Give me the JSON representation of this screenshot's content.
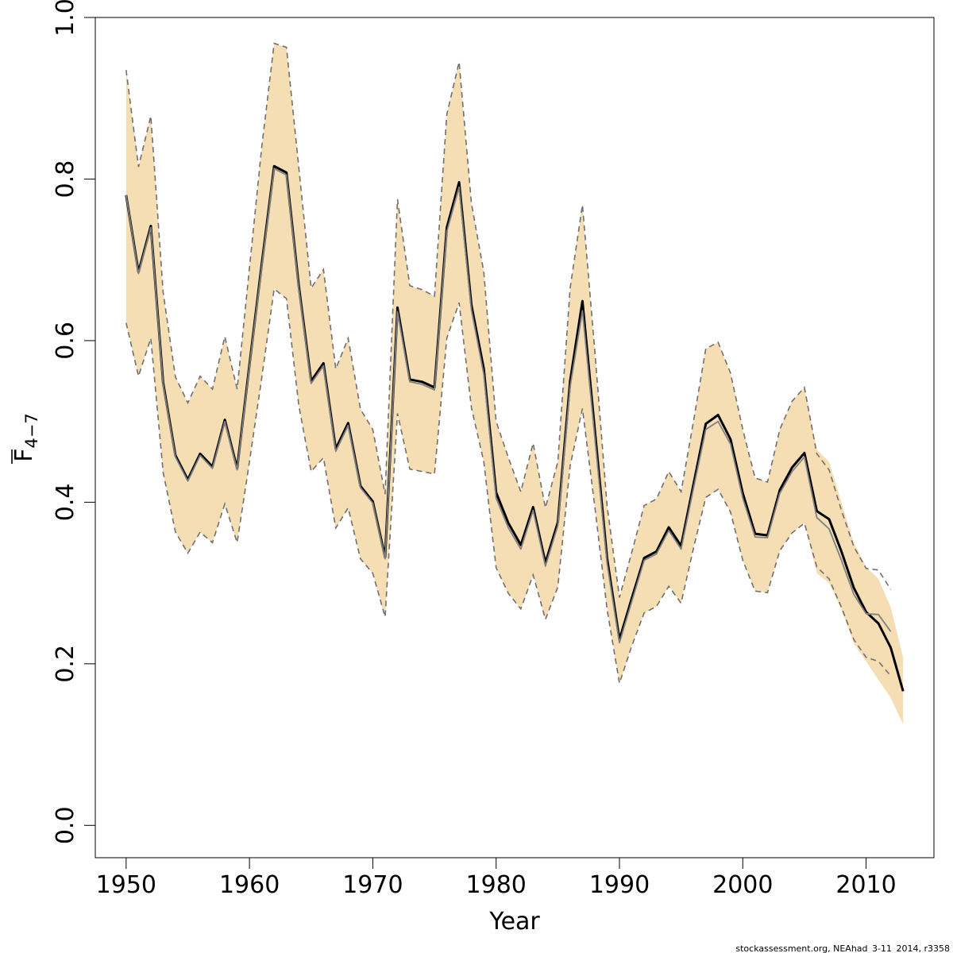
{
  "chart_data": {
    "type": "line",
    "title": "",
    "xlabel": "Year",
    "ylabel_main": "F",
    "ylabel_sub": "4−7",
    "xlim": [
      1947.5,
      2015.5
    ],
    "ylim": [
      -0.04,
      1.0
    ],
    "x_ticks": [
      "1950",
      "1960",
      "1970",
      "1980",
      "1990",
      "2000",
      "2010"
    ],
    "y_ticks": [
      "0.0",
      "0.2",
      "0.4",
      "0.6",
      "0.8",
      "1.0"
    ],
    "grid": false,
    "legend": "none",
    "colors": {
      "band": "#f5deb3",
      "estimate": "#000000",
      "previous": "#808080",
      "bound": "#707070"
    },
    "series": [
      {
        "role": "estimate",
        "x": [
          1950,
          1951,
          1952,
          1953,
          1954,
          1955,
          1956,
          1957,
          1958,
          1959,
          1960,
          1961,
          1962,
          1963,
          1964,
          1965,
          1966,
          1967,
          1968,
          1969,
          1970,
          1971,
          1972,
          1973,
          1974,
          1975,
          1976,
          1977,
          1978,
          1979,
          1980,
          1981,
          1982,
          1983,
          1984,
          1985,
          1986,
          1987,
          1988,
          1989,
          1990,
          1991,
          1992,
          1993,
          1994,
          1995,
          1996,
          1997,
          1998,
          1999,
          2000,
          2001,
          2002,
          2003,
          2004,
          2005,
          2006,
          2007,
          2008,
          2009,
          2010,
          2011,
          2012,
          2013
        ],
        "y": [
          0.78,
          0.685,
          0.742,
          0.548,
          0.458,
          0.428,
          0.46,
          0.444,
          0.502,
          0.442,
          0.57,
          0.695,
          0.816,
          0.808,
          0.668,
          0.55,
          0.572,
          0.466,
          0.498,
          0.42,
          0.401,
          0.332,
          0.641,
          0.552,
          0.549,
          0.542,
          0.74,
          0.796,
          0.644,
          0.565,
          0.412,
          0.374,
          0.347,
          0.394,
          0.325,
          0.375,
          0.55,
          0.649,
          0.49,
          0.33,
          0.23,
          0.281,
          0.331,
          0.339,
          0.369,
          0.346,
          0.422,
          0.497,
          0.508,
          0.478,
          0.411,
          0.361,
          0.359,
          0.415,
          0.443,
          0.461,
          0.389,
          0.379,
          0.339,
          0.294,
          0.264,
          0.25,
          0.22,
          0.166
        ]
      },
      {
        "role": "previous",
        "x": [
          1950,
          1951,
          1952,
          1953,
          1954,
          1955,
          1956,
          1957,
          1958,
          1959,
          1960,
          1961,
          1962,
          1963,
          1964,
          1965,
          1966,
          1967,
          1968,
          1969,
          1970,
          1971,
          1972,
          1973,
          1974,
          1975,
          1976,
          1977,
          1978,
          1979,
          1980,
          1981,
          1982,
          1983,
          1984,
          1985,
          1986,
          1987,
          1988,
          1989,
          1990,
          1991,
          1992,
          1993,
          1994,
          1995,
          1996,
          1997,
          1998,
          1999,
          2000,
          2001,
          2002,
          2003,
          2004,
          2005,
          2006,
          2007,
          2008,
          2009,
          2010,
          2011,
          2012
        ],
        "y": [
          0.78,
          0.683,
          0.74,
          0.546,
          0.456,
          0.426,
          0.458,
          0.442,
          0.5,
          0.44,
          0.568,
          0.692,
          0.813,
          0.805,
          0.665,
          0.547,
          0.569,
          0.463,
          0.495,
          0.418,
          0.399,
          0.33,
          0.636,
          0.549,
          0.546,
          0.539,
          0.735,
          0.79,
          0.638,
          0.558,
          0.405,
          0.368,
          0.342,
          0.39,
          0.321,
          0.371,
          0.543,
          0.637,
          0.481,
          0.324,
          0.226,
          0.277,
          0.328,
          0.336,
          0.365,
          0.342,
          0.417,
          0.49,
          0.5,
          0.472,
          0.405,
          0.357,
          0.356,
          0.411,
          0.438,
          0.456,
          0.381,
          0.367,
          0.328,
          0.286,
          0.262,
          0.261,
          0.24
        ]
      }
    ],
    "band": {
      "x": [
        1950,
        1951,
        1952,
        1953,
        1954,
        1955,
        1956,
        1957,
        1958,
        1959,
        1960,
        1961,
        1962,
        1963,
        1964,
        1965,
        1966,
        1967,
        1968,
        1969,
        1970,
        1971,
        1972,
        1973,
        1974,
        1975,
        1976,
        1977,
        1978,
        1979,
        1980,
        1981,
        1982,
        1983,
        1984,
        1985,
        1986,
        1987,
        1988,
        1989,
        1990,
        1991,
        1992,
        1993,
        1994,
        1995,
        1996,
        1997,
        1998,
        1999,
        2000,
        2001,
        2002,
        2003,
        2004,
        2005,
        2006,
        2007,
        2008,
        2009,
        2010,
        2011,
        2012,
        2013
      ],
      "upper": [
        0.935,
        0.815,
        0.878,
        0.66,
        0.555,
        0.523,
        0.556,
        0.54,
        0.605,
        0.54,
        0.69,
        0.84,
        0.968,
        0.963,
        0.815,
        0.665,
        0.688,
        0.565,
        0.603,
        0.515,
        0.49,
        0.41,
        0.775,
        0.668,
        0.663,
        0.655,
        0.88,
        0.945,
        0.77,
        0.685,
        0.5,
        0.455,
        0.413,
        0.473,
        0.393,
        0.45,
        0.665,
        0.768,
        0.588,
        0.395,
        0.282,
        0.338,
        0.396,
        0.404,
        0.438,
        0.413,
        0.5,
        0.59,
        0.598,
        0.56,
        0.49,
        0.43,
        0.425,
        0.49,
        0.525,
        0.542,
        0.465,
        0.45,
        0.4,
        0.35,
        0.32,
        0.305,
        0.27,
        0.208
      ],
      "lower": [
        0.622,
        0.556,
        0.603,
        0.437,
        0.363,
        0.337,
        0.363,
        0.35,
        0.398,
        0.35,
        0.45,
        0.554,
        0.664,
        0.652,
        0.52,
        0.438,
        0.455,
        0.368,
        0.393,
        0.33,
        0.312,
        0.258,
        0.51,
        0.441,
        0.438,
        0.435,
        0.603,
        0.647,
        0.517,
        0.45,
        0.319,
        0.287,
        0.268,
        0.31,
        0.255,
        0.295,
        0.445,
        0.516,
        0.395,
        0.267,
        0.176,
        0.222,
        0.263,
        0.271,
        0.296,
        0.275,
        0.343,
        0.406,
        0.416,
        0.388,
        0.328,
        0.29,
        0.288,
        0.34,
        0.362,
        0.374,
        0.312,
        0.3,
        0.267,
        0.225,
        0.203,
        0.18,
        0.158,
        0.125
      ]
    },
    "previous_bounds": {
      "x": [
        1950,
        1951,
        1952,
        1953,
        1954,
        1955,
        1956,
        1957,
        1958,
        1959,
        1960,
        1961,
        1962,
        1963,
        1964,
        1965,
        1966,
        1967,
        1968,
        1969,
        1970,
        1971,
        1972,
        1973,
        1974,
        1975,
        1976,
        1977,
        1978,
        1979,
        1980,
        1981,
        1982,
        1983,
        1984,
        1985,
        1986,
        1987,
        1988,
        1989,
        1990,
        1991,
        1992,
        1993,
        1994,
        1995,
        1996,
        1997,
        1998,
        1999,
        2000,
        2001,
        2002,
        2003,
        2004,
        2005,
        2006,
        2007,
        2008,
        2009,
        2010,
        2011,
        2012
      ],
      "upper": [
        0.935,
        0.815,
        0.878,
        0.66,
        0.555,
        0.523,
        0.556,
        0.54,
        0.605,
        0.54,
        0.69,
        0.84,
        0.968,
        0.963,
        0.815,
        0.665,
        0.688,
        0.565,
        0.603,
        0.515,
        0.49,
        0.41,
        0.775,
        0.668,
        0.663,
        0.655,
        0.88,
        0.945,
        0.77,
        0.685,
        0.5,
        0.455,
        0.413,
        0.473,
        0.393,
        0.45,
        0.665,
        0.768,
        0.588,
        0.395,
        0.282,
        0.338,
        0.396,
        0.404,
        0.438,
        0.413,
        0.5,
        0.59,
        0.598,
        0.56,
        0.49,
        0.43,
        0.425,
        0.49,
        0.525,
        0.542,
        0.46,
        0.44,
        0.39,
        0.345,
        0.318,
        0.316,
        0.292
      ],
      "lower": [
        0.622,
        0.556,
        0.603,
        0.437,
        0.363,
        0.337,
        0.363,
        0.35,
        0.398,
        0.35,
        0.45,
        0.554,
        0.664,
        0.652,
        0.52,
        0.438,
        0.455,
        0.368,
        0.393,
        0.33,
        0.312,
        0.258,
        0.51,
        0.441,
        0.438,
        0.435,
        0.603,
        0.647,
        0.517,
        0.45,
        0.319,
        0.287,
        0.268,
        0.31,
        0.255,
        0.295,
        0.445,
        0.516,
        0.395,
        0.267,
        0.176,
        0.222,
        0.263,
        0.271,
        0.296,
        0.275,
        0.343,
        0.406,
        0.416,
        0.388,
        0.328,
        0.29,
        0.288,
        0.34,
        0.362,
        0.374,
        0.32,
        0.305,
        0.27,
        0.23,
        0.208,
        0.203,
        0.185
      ]
    }
  },
  "footer_text": "stockassessment.org, NEAhad_3-11_2014, r3358"
}
